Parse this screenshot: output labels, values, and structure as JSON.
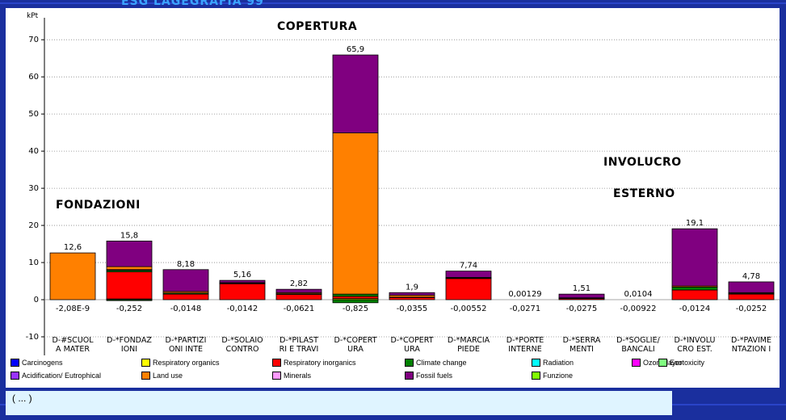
{
  "slide": {
    "top_title": "ESG  LAGEGRAFIA 99",
    "annotations": {
      "copertura": "COPERTURA",
      "fondazioni": "FONDAZIONI",
      "involucro": "INVOLUCRO",
      "esterno": "ESTERNO"
    },
    "bottom_text": "( ... )",
    "background_color": "#1a2f9e"
  },
  "chart_data": {
    "type": "bar",
    "stacked": true,
    "ylabel": "kPt",
    "ylim": [
      -15,
      72
    ],
    "yticks": [
      -10,
      0,
      10,
      20,
      30,
      40,
      50,
      60,
      70
    ],
    "grid": true,
    "categories": [
      [
        "D-#SCUOL",
        "A MATER"
      ],
      [
        "D-*FONDAZ",
        "IONI"
      ],
      [
        "D-*PARTIZI",
        "ONI INTE"
      ],
      [
        "D-*SOLAIO",
        "CONTRO"
      ],
      [
        "D-*PILAST",
        "RI E TRAVI"
      ],
      [
        "D-*COPERT",
        "URA"
      ],
      [
        "D-*COPERT",
        "URA"
      ],
      [
        "D-*MARCIA",
        "PIEDE"
      ],
      [
        "D-*PORTE",
        "INTERNE"
      ],
      [
        "D-*SERRA",
        "MENTI"
      ],
      [
        "D-*SOGLIE/",
        "BANCALI"
      ],
      [
        "D-*INVOLU",
        "CRO EST."
      ],
      [
        "D-*PAVIME",
        "NTAZION I"
      ]
    ],
    "top_labels": [
      "12,6",
      "15,8",
      "8,18",
      "5,16",
      "2,82",
      "65,9",
      "1,9",
      "7,74",
      "0,00129",
      "1,51",
      "0,0104",
      "19,1",
      "4,78"
    ],
    "bottom_labels": [
      "-2,08E-9",
      "-0,252",
      "-0,0148",
      "-0,0142",
      "-0,0621",
      "-0,825",
      "-0,0355",
      "-0,00552",
      "-0,0271",
      "-0,0275",
      "-0,00922",
      "-0,0124",
      "-0,0252"
    ],
    "series": [
      {
        "name": "Carcinogens",
        "color": "#0000ff",
        "values": [
          0,
          0,
          0,
          0,
          0,
          0,
          0,
          0,
          0,
          0,
          0,
          0,
          0
        ]
      },
      {
        "name": "Respiratory organics",
        "color": "#ffff00",
        "values": [
          0,
          0.2,
          0,
          0,
          0,
          0.3,
          0,
          0,
          0,
          0,
          0,
          0,
          0
        ]
      },
      {
        "name": "Respiratory inorganics",
        "color": "#ff0000",
        "values": [
          0,
          7.3,
          1.5,
          4.3,
          1.4,
          0.6,
          0.6,
          5.7,
          0,
          0.3,
          0,
          2.6,
          1.5
        ]
      },
      {
        "name": "Climate change",
        "color": "#008000",
        "values": [
          0,
          0.4,
          0.3,
          0.1,
          0.2,
          0.6,
          0.1,
          0.1,
          0,
          0.1,
          0,
          0.8,
          0.2
        ]
      },
      {
        "name": "Radiation",
        "color": "#00ffff",
        "values": [
          0,
          0,
          0,
          0,
          0,
          0,
          0,
          0,
          0,
          0,
          0,
          0,
          0
        ]
      },
      {
        "name": "Ozone layer",
        "color": "#ff00ff",
        "values": [
          0,
          0,
          0,
          0,
          0,
          0,
          0,
          0,
          0,
          0,
          0,
          0,
          0
        ]
      },
      {
        "name": "Ecotoxicity",
        "color": "#80ff80",
        "values": [
          0,
          0,
          0,
          0,
          0,
          0,
          0,
          0,
          0,
          0,
          0,
          0,
          0
        ]
      },
      {
        "name": "Acidification/ Eutrophication",
        "color": "#9933ff",
        "values": [
          0,
          0.2,
          0,
          0,
          0,
          0,
          0,
          0,
          0,
          0,
          0,
          0,
          0
        ]
      },
      {
        "name": "Land use",
        "color": "#ff8000",
        "values": [
          12.6,
          0.8,
          0.4,
          0.2,
          0.3,
          43.4,
          0.5,
          0.2,
          0,
          0.1,
          0,
          0.3,
          0.2
        ]
      },
      {
        "name": "Minerals",
        "color": "#ff99ff",
        "values": [
          0,
          0,
          0,
          0,
          0,
          0,
          0,
          0,
          0,
          0,
          0,
          0,
          0
        ]
      },
      {
        "name": "Fossil fuels",
        "color": "#800080",
        "values": [
          0,
          6.9,
          5.9,
          0.6,
          0.9,
          21.0,
          0.7,
          1.7,
          0,
          1.0,
          0,
          15.4,
          2.9
        ]
      },
      {
        "name": "Funzione",
        "color": "#80ff00",
        "values": [
          0,
          0,
          0,
          0,
          0,
          0,
          0,
          0,
          0,
          0,
          0,
          0,
          0
        ]
      }
    ],
    "negative_series": {
      "name": "Climate change",
      "color": "#008000",
      "values": [
        0,
        -0.25,
        0,
        0,
        0,
        -0.825,
        0,
        0,
        0,
        0,
        0,
        0,
        0
      ]
    },
    "legend": [
      {
        "label": "Carcinogens",
        "color": "#0000ff"
      },
      {
        "label": "Respiratory organics",
        "color": "#ffff00"
      },
      {
        "label": "Respiratory inorganics",
        "color": "#ff0000"
      },
      {
        "label": "Climate change",
        "color": "#008000"
      },
      {
        "label": "Radiation",
        "color": "#00ffff"
      },
      {
        "label": "Ozone layer",
        "color": "#ff00ff"
      },
      {
        "label": "Ecotoxicity",
        "color": "#80ff80"
      },
      {
        "label": "Acidification/ Eutrophical",
        "color": "#9933ff"
      },
      {
        "label": "Land use",
        "color": "#ff8000"
      },
      {
        "label": "Minerals",
        "color": "#ff99ff"
      },
      {
        "label": "Fossil fuels",
        "color": "#800080"
      },
      {
        "label": "Funzione",
        "color": "#80ff00"
      }
    ],
    "legend_position": "bottom"
  }
}
